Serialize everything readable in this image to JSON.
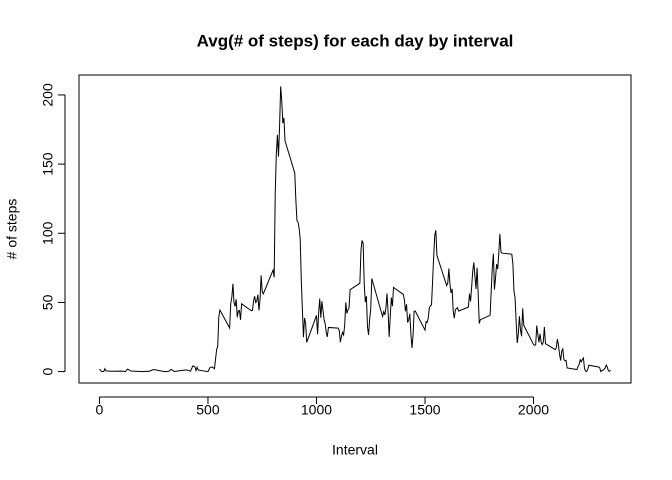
{
  "chart_data": {
    "type": "line",
    "title": "Avg(# of steps) for each day by interval",
    "x_label": "Interval",
    "y_label": "# of steps",
    "color": "#000000",
    "xlim": [
      -94.2,
      2449.2
    ],
    "ylim": [
      -8.25,
      214.42
    ],
    "xticks": [
      0,
      500,
      1000,
      1500,
      2000
    ],
    "yticks": [
      0,
      50,
      100,
      150,
      200
    ],
    "x": [
      0,
      10,
      20,
      25,
      30,
      55,
      100,
      110,
      120,
      125,
      130,
      145,
      200,
      215,
      225,
      250,
      300,
      320,
      330,
      345,
      400,
      420,
      430,
      440,
      445,
      450,
      455,
      500,
      505,
      510,
      520,
      530,
      540,
      545,
      550,
      555,
      600,
      605,
      610,
      615,
      620,
      625,
      630,
      635,
      640,
      645,
      650,
      655,
      700,
      705,
      710,
      715,
      720,
      725,
      730,
      735,
      740,
      745,
      750,
      755,
      800,
      805,
      810,
      815,
      820,
      825,
      830,
      835,
      840,
      845,
      850,
      855,
      900,
      905,
      910,
      915,
      920,
      925,
      930,
      935,
      940,
      945,
      950,
      955,
      1000,
      1005,
      1010,
      1015,
      1020,
      1025,
      1030,
      1035,
      1040,
      1045,
      1050,
      1055,
      1100,
      1105,
      1110,
      1115,
      1120,
      1125,
      1130,
      1135,
      1140,
      1145,
      1150,
      1155,
      1200,
      1205,
      1210,
      1215,
      1220,
      1225,
      1230,
      1235,
      1240,
      1245,
      1250,
      1255,
      1300,
      1305,
      1310,
      1315,
      1320,
      1325,
      1330,
      1335,
      1340,
      1345,
      1350,
      1355,
      1400,
      1405,
      1410,
      1415,
      1420,
      1425,
      1430,
      1435,
      1440,
      1445,
      1450,
      1455,
      1500,
      1505,
      1510,
      1515,
      1520,
      1525,
      1530,
      1535,
      1540,
      1545,
      1550,
      1555,
      1600,
      1605,
      1610,
      1615,
      1620,
      1625,
      1630,
      1635,
      1640,
      1645,
      1650,
      1655,
      1700,
      1705,
      1710,
      1715,
      1720,
      1725,
      1730,
      1735,
      1740,
      1745,
      1750,
      1755,
      1800,
      1805,
      1810,
      1815,
      1820,
      1825,
      1830,
      1835,
      1840,
      1845,
      1850,
      1855,
      1900,
      1905,
      1910,
      1915,
      1920,
      1925,
      1930,
      1935,
      1940,
      1945,
      1950,
      1955,
      2000,
      2005,
      2010,
      2015,
      2020,
      2025,
      2030,
      2035,
      2040,
      2045,
      2050,
      2055,
      2100,
      2105,
      2110,
      2115,
      2120,
      2125,
      2130,
      2135,
      2140,
      2145,
      2150,
      2155,
      2200,
      2205,
      2210,
      2215,
      2220,
      2225,
      2230,
      2235,
      2240,
      2245,
      2250,
      2255,
      2300,
      2305,
      2310,
      2315,
      2320,
      2325,
      2330,
      2335,
      2340,
      2345,
      2350,
      2355
    ],
    "values": [
      1.7,
      0.1,
      0.1,
      2.1,
      0.5,
      0.2,
      0.3,
      0.2,
      0,
      1.1,
      1.8,
      0.4,
      0,
      0.2,
      0.1,
      1.5,
      0,
      0.2,
      1.6,
      0.1,
      1.2,
      0.3,
      4.1,
      3.5,
      0.8,
      3.1,
      1.1,
      0,
      1.6,
      3,
      3.3,
      2,
      16,
      18.3,
      39.5,
      44.5,
      31.5,
      49.3,
      53.8,
      63.5,
      50,
      47.1,
      52.2,
      39.3,
      44,
      44.2,
      37.4,
      49,
      44,
      44.2,
      50.8,
      54.5,
      49.9,
      50.9,
      55.7,
      44.3,
      52.3,
      69.5,
      57.8,
      56.2,
      73.4,
      68.2,
      129.4,
      157.5,
      171.2,
      155.4,
      177.3,
      206.2,
      195.9,
      179.6,
      183.4,
      167,
      143.5,
      124,
      109.1,
      108.1,
      103.7,
      95.97,
      66.2,
      45.2,
      24.8,
      38.8,
      34.98,
      21.1,
      40.6,
      26.98,
      42.4,
      52.7,
      38.9,
      50.8,
      44.3,
      37.4,
      34.7,
      28.3,
      25.1,
      31.9,
      31.4,
      29.7,
      21.3,
      25.5,
      28.4,
      26.5,
      33.4,
      49.98,
      42.0,
      44.6,
      46.0,
      59.2,
      63.9,
      87.7,
      94.8,
      92.8,
      63.4,
      50.2,
      54.5,
      32.4,
      26.5,
      37.7,
      45.1,
      67.3,
      42.3,
      39.9,
      43.3,
      40.98,
      46.2,
      56.4,
      42.8,
      25.1,
      39.97,
      53.5,
      47.3,
      60.8,
      55.8,
      51.96,
      43.6,
      48.7,
      35.5,
      37.5,
      41.8,
      27.5,
      17.1,
      26.1,
      43.6,
      43.8,
      30.0,
      36.1,
      35.5,
      38.8,
      45.96,
      47.8,
      48.1,
      65.3,
      82.9,
      98.7,
      102.1,
      83.96,
      62.1,
      64.1,
      74.5,
      63.2,
      56.9,
      59.8,
      43.9,
      38.6,
      44.7,
      45.5,
      46.2,
      43.7,
      46.6,
      56.3,
      50.7,
      61.2,
      72.7,
      78.9,
      68.9,
      59.7,
      75.1,
      56.5,
      34.8,
      37.5,
      40.7,
      58.0,
      74.7,
      85.3,
      59.3,
      67.8,
      77.7,
      74.2,
      85.3,
      99.5,
      86.6,
      85.6,
      84.9,
      77.8,
      58.0,
      53.4,
      36.3,
      20.7,
      27.4,
      40.0,
      30.2,
      25.5,
      45.7,
      33.5,
      19.6,
      19.0,
      19.3,
      33.3,
      26.8,
      21.2,
      27.3,
      21.3,
      19.5,
      21.3,
      32.3,
      20.2,
      15.9,
      17.2,
      23.5,
      19.2,
      12.5,
      8.0,
      14.7,
      16.3,
      8.7,
      7.8,
      8.1,
      2.6,
      1.5,
      3.7,
      4.8,
      8.5,
      7.1,
      8.7,
      9.8,
      2.2,
      0.3,
      0.1,
      1.6,
      4.6,
      3.3,
      2.8,
      0,
      0.8,
      0.96,
      1.6,
      2.6,
      4.7,
      3.3,
      0.6,
      0.2,
      1.1
    ]
  }
}
